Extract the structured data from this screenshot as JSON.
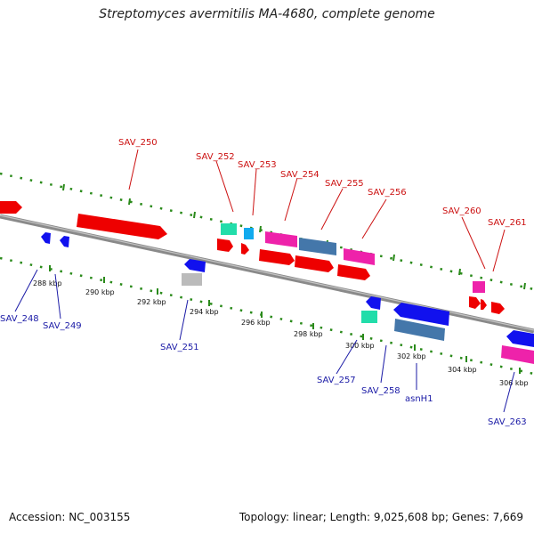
{
  "title": "Streptomyces avermitilis MA-4680, complete genome",
  "footer": {
    "accession": "Accession: NC_003155",
    "summary": "Topology: linear; Length: 9,025,608 bp; Genes: 7,669"
  },
  "colors": {
    "forward_label": "#cc1111",
    "reverse_label": "#1a1aa6",
    "backbone": "#8a8a8a",
    "tick_marks": "#2a8a1a"
  },
  "scale_ticks": [
    "288 kbp",
    "290 kbp",
    "292 kbp",
    "294 kbp",
    "296 kbp",
    "298 kbp",
    "300 kbp",
    "302 kbp",
    "304 kbp",
    "306 kbp"
  ],
  "forward_genes": [
    "SAV_250",
    "SAV_252",
    "SAV_253",
    "SAV_254",
    "SAV_255",
    "SAV_256",
    "SAV_260",
    "SAV_261"
  ],
  "reverse_genes": [
    "SAV_248",
    "SAV_249",
    "SAV_251",
    "SAV_257",
    "SAV_258",
    "asnH1",
    "SAV_263"
  ]
}
